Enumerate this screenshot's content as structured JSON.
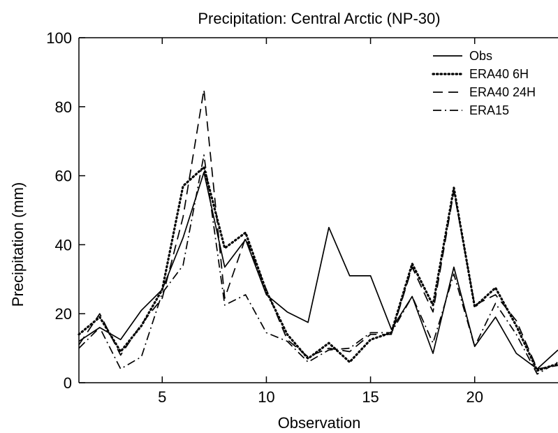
{
  "chart_data": {
    "type": "line",
    "title": "Precipitation: Central Arctic (NP-30)",
    "xlabel": "Observation",
    "ylabel": "Precipitation (mm)",
    "xlim": [
      1,
      24
    ],
    "ylim": [
      0,
      100
    ],
    "xticks": [
      5,
      10,
      15,
      20
    ],
    "yticks": [
      0,
      20,
      40,
      60,
      80,
      100
    ],
    "grid": false,
    "legend_position": "top-right",
    "x": [
      1,
      2,
      3,
      4,
      5,
      6,
      7,
      8,
      9,
      10,
      11,
      12,
      13,
      14,
      15,
      16,
      17,
      18,
      19,
      20,
      21,
      22,
      23,
      24
    ],
    "series": [
      {
        "name": "Obs",
        "style": "solid",
        "values": [
          12,
          16,
          12.5,
          21,
          27,
          42,
          61,
          33.5,
          41.5,
          25.5,
          20.5,
          17.5,
          45,
          31,
          31,
          15.5,
          25,
          8.5,
          33.5,
          10.5,
          19,
          8.5,
          4,
          9.5
        ]
      },
      {
        "name": "ERA40 6H",
        "style": "dotted",
        "values": [
          14,
          19,
          9,
          16.5,
          27,
          57,
          62.5,
          39,
          43.5,
          26.5,
          14,
          7,
          11.5,
          6,
          12.5,
          14.5,
          34.5,
          22.5,
          56.5,
          22,
          27.5,
          16.5,
          3.5,
          5.5
        ]
      },
      {
        "name": "ERA40 24H",
        "style": "dashed",
        "values": [
          11,
          20,
          8,
          17,
          24.5,
          48,
          85,
          24.5,
          42,
          27,
          12.5,
          7.5,
          10,
          9,
          14,
          14,
          33.5,
          20.5,
          55.5,
          22.5,
          25.5,
          18,
          4,
          5
        ]
      },
      {
        "name": "ERA15",
        "style": "dash-dot",
        "values": [
          10,
          16,
          4,
          7.5,
          26,
          34,
          66,
          22.5,
          25.5,
          14.5,
          12,
          6,
          9.5,
          10,
          14.5,
          14.5,
          25,
          11.5,
          31.5,
          10.5,
          23,
          14,
          2.5,
          6
        ]
      }
    ]
  }
}
